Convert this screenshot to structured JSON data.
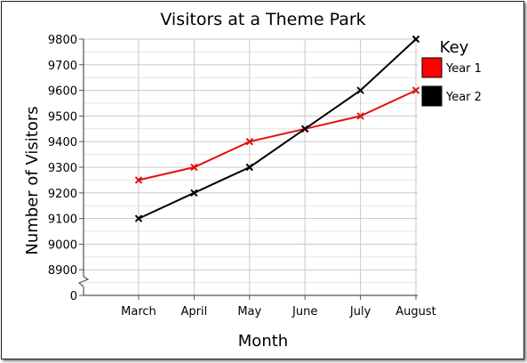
{
  "chart_data": {
    "type": "line",
    "title": "Visitors at a Theme Park",
    "xlabel": "Month",
    "ylabel": "Number of Visitors",
    "categories": [
      "March",
      "April",
      "May",
      "June",
      "July",
      "August"
    ],
    "yticks": [
      "9800",
      "9700",
      "9600",
      "9500",
      "9400",
      "9300",
      "9200",
      "9100",
      "9000",
      "8900",
      "0"
    ],
    "ylim": [
      8800,
      9800
    ],
    "axis_break": true,
    "grid": true,
    "legend": {
      "title": "Key",
      "placement": "right",
      "items": [
        {
          "label": "Year 1",
          "color": "#ff0000"
        },
        {
          "label": "Year 2",
          "color": "#000000"
        }
      ]
    },
    "series": [
      {
        "name": "Year 1",
        "color": "#e01010",
        "marker": "x",
        "values": [
          9250,
          9300,
          9400,
          9450,
          9500,
          9600
        ]
      },
      {
        "name": "Year 2",
        "color": "#000000",
        "marker": "x",
        "values": [
          9100,
          9200,
          9300,
          9450,
          9600,
          9800
        ]
      }
    ]
  }
}
